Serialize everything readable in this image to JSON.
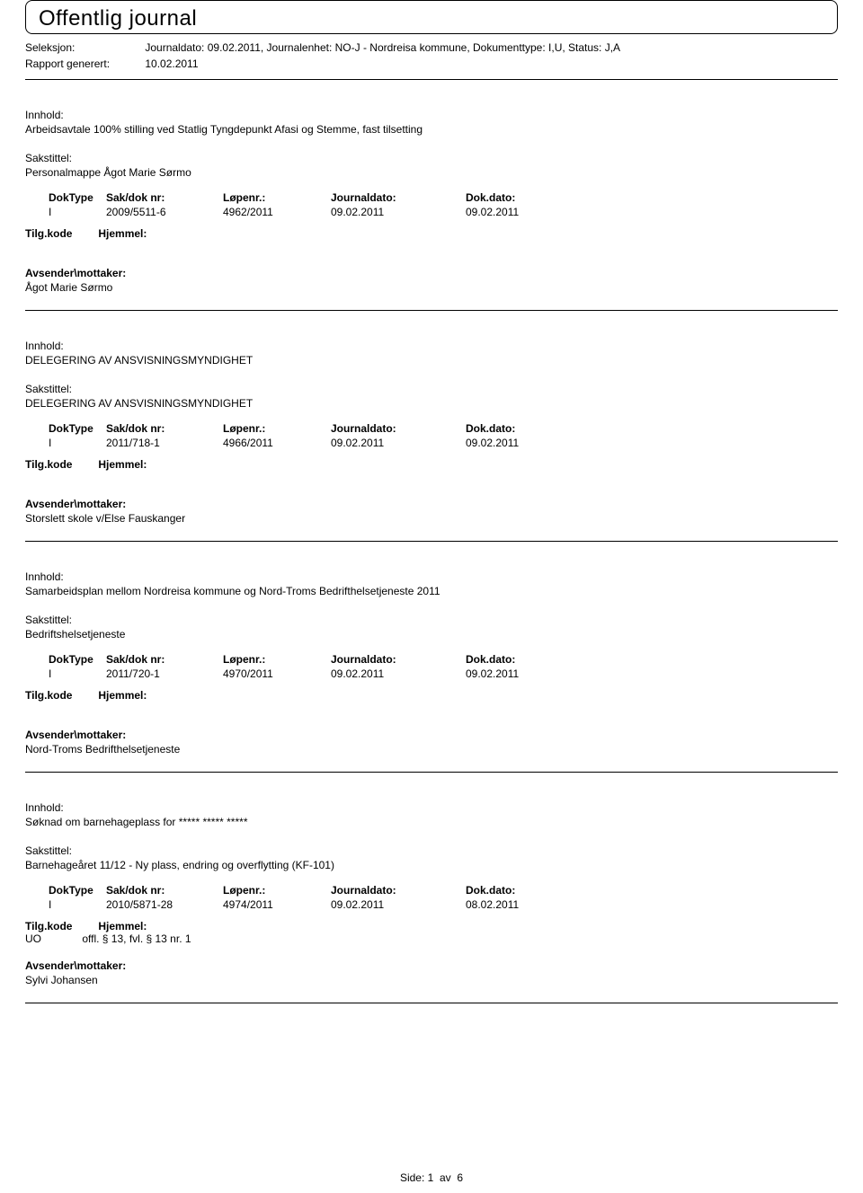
{
  "header": {
    "title": "Offentlig journal",
    "seleksjon_label": "Seleksjon:",
    "seleksjon_value": "Journaldato: 09.02.2011, Journalenhet: NO-J - Nordreisa kommune, Dokumenttype: I,U, Status: J,A",
    "rapport_label": "Rapport generert:",
    "rapport_value": "10.02.2011"
  },
  "labels": {
    "innhold": "Innhold:",
    "sakstittel": "Sakstittel:",
    "doktype": "DokType",
    "sakdok": "Sak/dok nr:",
    "lopenr": "Løpenr.:",
    "journaldato": "Journaldato:",
    "dokdato": "Dok.dato:",
    "tilgkode": "Tilg.kode",
    "hjemmel": "Hjemmel:",
    "avsender": "Avsender\\mottaker:"
  },
  "entries": [
    {
      "innhold": "Arbeidsavtale 100% stilling ved Statlig Tyngdepunkt Afasi og Stemme, fast tilsetting",
      "sakstittel": "Personalmappe Ågot Marie Sørmo",
      "doktype": "I",
      "sakdok": "2009/5511-6",
      "lopenr": "4962/2011",
      "journaldato": "09.02.2011",
      "dokdato": "09.02.2011",
      "hjemmel_code": "",
      "hjemmel_text": "",
      "avsender": "Ågot Marie Sørmo"
    },
    {
      "innhold": "DELEGERING AV ANSVISNINGSMYNDIGHET",
      "sakstittel": "DELEGERING AV ANSVISNINGSMYNDIGHET",
      "doktype": "I",
      "sakdok": "2011/718-1",
      "lopenr": "4966/2011",
      "journaldato": "09.02.2011",
      "dokdato": "09.02.2011",
      "hjemmel_code": "",
      "hjemmel_text": "",
      "avsender": "Storslett skole v/Else Fauskanger"
    },
    {
      "innhold": "Samarbeidsplan mellom Nordreisa kommune og Nord-Troms Bedrifthelsetjeneste  2011",
      "sakstittel": "Bedriftshelsetjeneste",
      "doktype": "I",
      "sakdok": "2011/720-1",
      "lopenr": "4970/2011",
      "journaldato": "09.02.2011",
      "dokdato": "09.02.2011",
      "hjemmel_code": "",
      "hjemmel_text": "",
      "avsender": "Nord-Troms Bedrifthelsetjeneste"
    },
    {
      "innhold": "Søknad om barnehageplass for ***** ***** *****",
      "sakstittel": "Barnehageåret 11/12 - Ny plass, endring og overflytting (KF-101)",
      "doktype": "I",
      "sakdok": "2010/5871-28",
      "lopenr": "4974/2011",
      "journaldato": "09.02.2011",
      "dokdato": "08.02.2011",
      "hjemmel_code": "UO",
      "hjemmel_text": "offl. § 13, fvl. § 13 nr. 1",
      "avsender": "Sylvi Johansen"
    }
  ],
  "footer": {
    "side_label": "Side:",
    "page_cur": "1",
    "av": "av",
    "page_total": "6"
  }
}
